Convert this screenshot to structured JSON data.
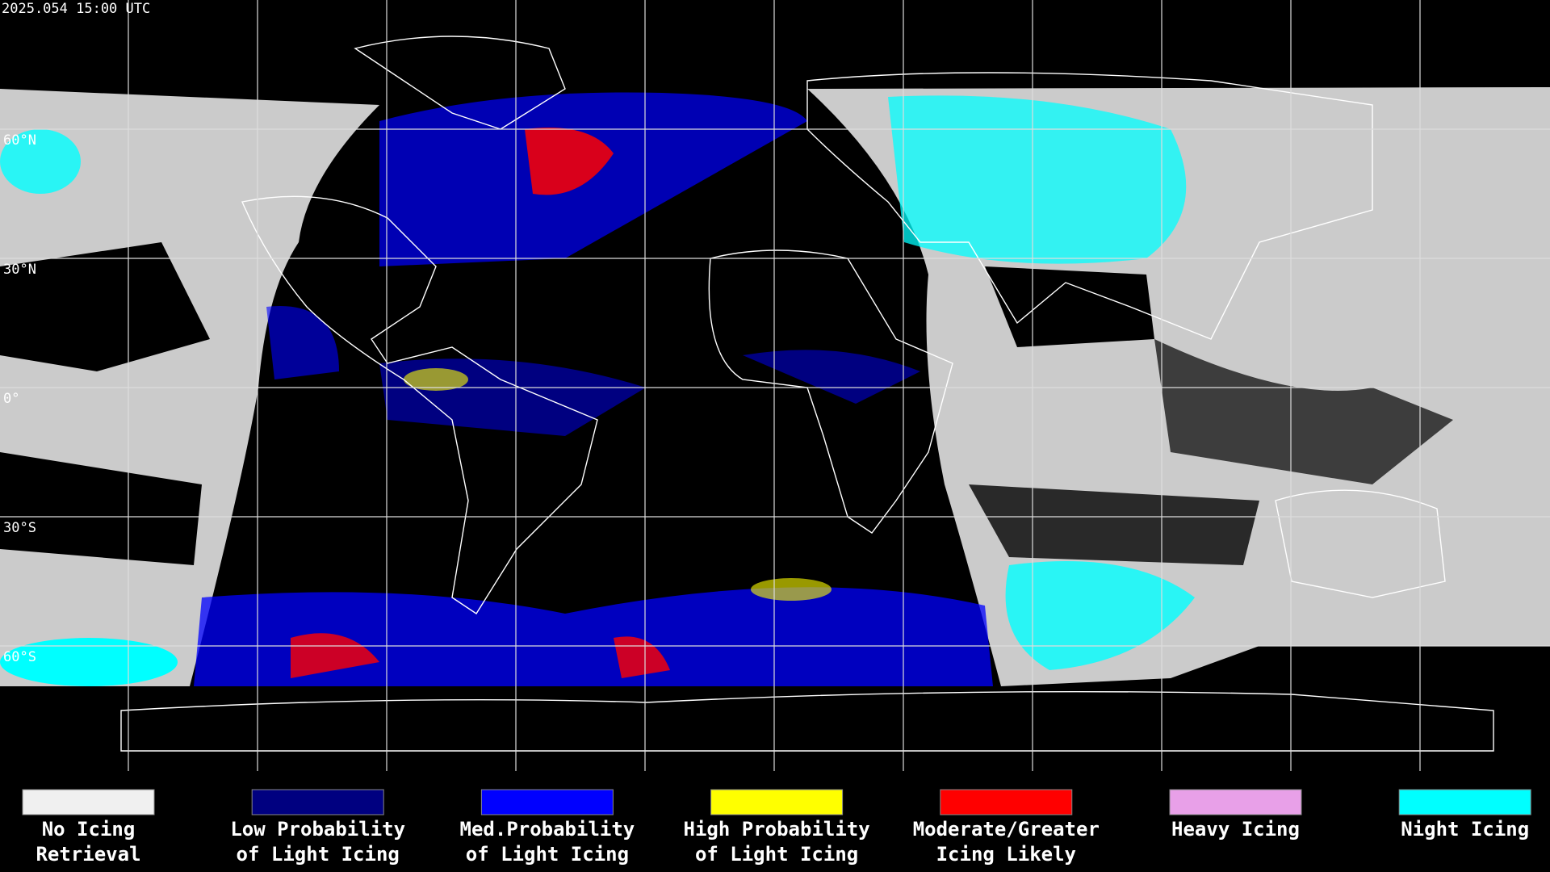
{
  "timestamp": "2025.054 15:00 UTC",
  "latitude_labels": [
    "60°N",
    "30°N",
    "0°",
    "30°S",
    "60°S"
  ],
  "legend": [
    {
      "line1": "No Icing",
      "line2": "Retrieval",
      "color": "#f0f0f0"
    },
    {
      "line1": "Low Probability",
      "line2": "of Light Icing",
      "color": "#000080"
    },
    {
      "line1": "Med.Probability",
      "line2": "of Light Icing",
      "color": "#0000ff"
    },
    {
      "line1": "High Probability",
      "line2": "of Light Icing",
      "color": "#ffff00"
    },
    {
      "line1": "Moderate/Greater",
      "line2": "Icing Likely",
      "color": "#ff0000"
    },
    {
      "line1": "Heavy Icing",
      "line2": "",
      "color": "#e8a0e8"
    },
    {
      "line1": "Night Icing",
      "line2": "",
      "color": "#00ffff"
    }
  ]
}
